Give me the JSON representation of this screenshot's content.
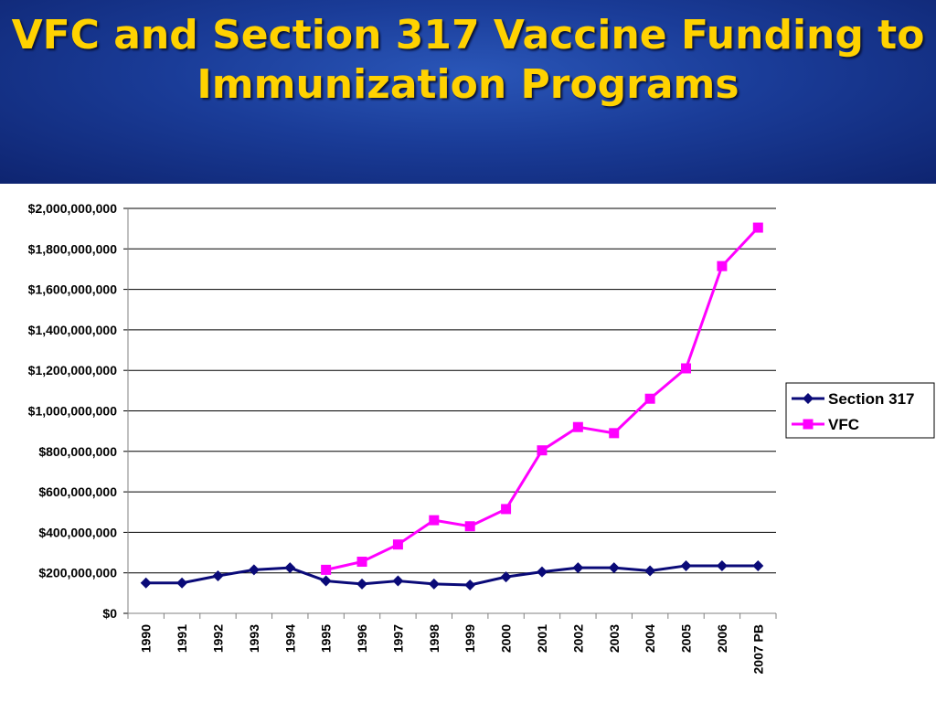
{
  "title": "VFC and Section 317 Vaccine Funding to Immunization Programs",
  "colors": {
    "title_text": "#ffd200",
    "title_band": "#1a3c98",
    "section317": "#0a0a78",
    "vfc": "#ff00ff",
    "grid": "#000000"
  },
  "chart_data": {
    "type": "line",
    "title": "",
    "xlabel": "",
    "ylabel": "",
    "categories": [
      "1990",
      "1991",
      "1992",
      "1993",
      "1994",
      "1995",
      "1996",
      "1997",
      "1998",
      "1999",
      "2000",
      "2001",
      "2002",
      "2003",
      "2004",
      "2005",
      "2006",
      "2007 PB"
    ],
    "ylim": [
      0,
      2000000000
    ],
    "yticks": [
      0,
      200000000,
      400000000,
      600000000,
      800000000,
      1000000000,
      1200000000,
      1400000000,
      1600000000,
      1800000000,
      2000000000
    ],
    "ytick_labels": [
      "$0",
      "$200,000,000",
      "$400,000,000",
      "$600,000,000",
      "$800,000,000",
      "$1,000,000,000",
      "$1,200,000,000",
      "$1,400,000,000",
      "$1,600,000,000",
      "$1,800,000,000",
      "$2,000,000,000"
    ],
    "grid": true,
    "legend_position": "right",
    "series": [
      {
        "name": "Section 317",
        "marker": "diamond",
        "values": [
          150000000,
          150000000,
          185000000,
          215000000,
          225000000,
          160000000,
          145000000,
          160000000,
          145000000,
          140000000,
          180000000,
          205000000,
          225000000,
          225000000,
          210000000,
          235000000,
          235000000,
          235000000
        ]
      },
      {
        "name": "VFC",
        "marker": "square",
        "values": [
          null,
          null,
          null,
          null,
          null,
          215000000,
          255000000,
          340000000,
          460000000,
          430000000,
          515000000,
          805000000,
          920000000,
          890000000,
          1060000000,
          1210000000,
          1715000000,
          1905000000
        ]
      }
    ]
  }
}
